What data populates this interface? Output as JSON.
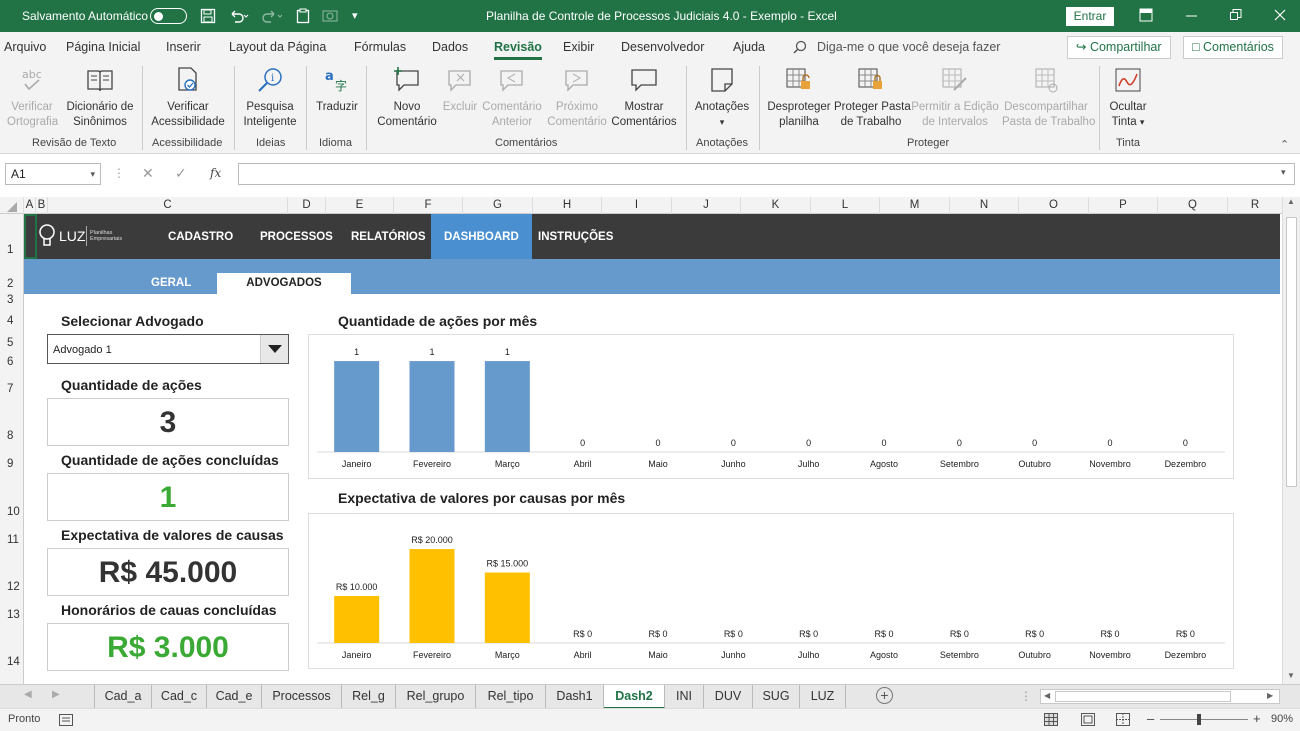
{
  "titlebar": {
    "autosave_label": "Salvamento Automático",
    "title": "Planilha de Controle de Processos Judiciais 4.0 - Exemplo  -  Excel",
    "signin_label": "Entrar"
  },
  "menu": {
    "items": [
      "Arquivo",
      "Página Inicial",
      "Inserir",
      "Layout da Página",
      "Fórmulas",
      "Dados",
      "Revisão",
      "Exibir",
      "Desenvolvedor",
      "Ajuda"
    ],
    "active": "Revisão",
    "tell_me": "Diga-me o que você deseja fazer",
    "share_label": "Compartilhar",
    "comments_label": "Comentários"
  },
  "ribbon": {
    "buttons": [
      {
        "line1": "Verificar",
        "line2": "Ortografia",
        "enabled": false
      },
      {
        "line1": "Dicionário de",
        "line2": "Sinônimos",
        "enabled": true
      },
      {
        "line1": "Verificar",
        "line2": "Acessibilidade",
        "enabled": true
      },
      {
        "line1": "Pesquisa",
        "line2": "Inteligente",
        "enabled": true
      },
      {
        "line1": "Traduzir",
        "line2": "",
        "enabled": true
      },
      {
        "line1": "Novo",
        "line2": "Comentário",
        "enabled": true
      },
      {
        "line1": "Excluir",
        "line2": "",
        "enabled": false
      },
      {
        "line1": "Comentário",
        "line2": "Anterior",
        "enabled": false
      },
      {
        "line1": "Próximo",
        "line2": "Comentário",
        "enabled": false
      },
      {
        "line1": "Mostrar",
        "line2": "Comentários",
        "enabled": true
      },
      {
        "line1": "Anotações",
        "line2": "",
        "enabled": true
      },
      {
        "line1": "Desproteger",
        "line2": "planilha",
        "enabled": true
      },
      {
        "line1": "Proteger Pasta",
        "line2": "de Trabalho",
        "enabled": true
      },
      {
        "line1": "Permitir a Edição",
        "line2": "de Intervalos",
        "enabled": false
      },
      {
        "line1": "Descompartilhar",
        "line2": "Pasta de Trabalho",
        "enabled": false
      },
      {
        "line1": "Ocultar",
        "line2": "Tinta",
        "enabled": true
      }
    ],
    "groups": [
      "Revisão de Texto",
      "Acessibilidade",
      "Ideias",
      "Idioma",
      "Comentários",
      "Anotações",
      "Proteger",
      "Tinta"
    ]
  },
  "formula_bar": {
    "name_box": "A1",
    "fx": "fx",
    "value": ""
  },
  "columns": [
    "A",
    "B",
    "C",
    "D",
    "E",
    "F",
    "G",
    "H",
    "I",
    "J",
    "K",
    "L",
    "M",
    "N",
    "O",
    "P",
    "Q",
    "R"
  ],
  "rows": [
    "1",
    "2",
    "3",
    "4",
    "5",
    "6",
    "7",
    "8",
    "9",
    "10",
    "11",
    "12",
    "13",
    "14"
  ],
  "dashboard": {
    "logo_text": "LUZ",
    "logo_sub": "Planilhas Empresariais",
    "nav": [
      "CADASTRO",
      "PROCESSOS",
      "RELATÓRIOS",
      "DASHBOARD",
      "INSTRUÇÕES"
    ],
    "nav_active": "DASHBOARD",
    "subnav": [
      "GERAL",
      "ADVOGADOS"
    ],
    "subnav_active": "ADVOGADOS",
    "select_label": "Selecionar Advogado",
    "select_value": "Advogado 1",
    "kpis": [
      {
        "label": "Quantidade de ações",
        "value": "3",
        "color": "#333333"
      },
      {
        "label": "Quantidade de ações concluídas",
        "value": "1",
        "color": "#3aaa35"
      },
      {
        "label": "Expectativa de valores de causas",
        "value": "R$ 45.000",
        "color": "#333333"
      },
      {
        "label": "Honorários de cauas concluídas",
        "value": "R$ 3.000",
        "color": "#3aaa35"
      }
    ]
  },
  "chart_data": [
    {
      "type": "bar",
      "title": "Quantidade de ações por mês",
      "categories": [
        "Janeiro",
        "Fevereiro",
        "Março",
        "Abril",
        "Maio",
        "Junho",
        "Julho",
        "Agosto",
        "Setembro",
        "Outubro",
        "Novembro",
        "Dezembro"
      ],
      "values": [
        1,
        1,
        1,
        0,
        0,
        0,
        0,
        0,
        0,
        0,
        0,
        0
      ],
      "labels": [
        "1",
        "1",
        "1",
        "0",
        "0",
        "0",
        "0",
        "0",
        "0",
        "0",
        "0",
        "0"
      ],
      "color": "#6699cc",
      "ylim": [
        0,
        1.1
      ],
      "grid": false,
      "legend": "none"
    },
    {
      "type": "bar",
      "title": "Expectativa de valores por causas por mês",
      "categories": [
        "Janeiro",
        "Fevereiro",
        "Março",
        "Abril",
        "Maio",
        "Junho",
        "Julho",
        "Agosto",
        "Setembro",
        "Outubro",
        "Novembro",
        "Dezembro"
      ],
      "values": [
        10000,
        20000,
        15000,
        0,
        0,
        0,
        0,
        0,
        0,
        0,
        0,
        0
      ],
      "labels": [
        "R$ 10.000",
        "R$ 20.000",
        "R$ 15.000",
        "R$ 0",
        "R$ 0",
        "R$ 0",
        "R$ 0",
        "R$ 0",
        "R$ 0",
        "R$ 0",
        "R$ 0",
        "R$ 0"
      ],
      "color": "#ffc000",
      "ylim": [
        0,
        21500
      ],
      "grid": false,
      "legend": "none"
    }
  ],
  "sheet_tabs": [
    "Cad_a",
    "Cad_c",
    "Cad_e",
    "Processos",
    "Rel_g",
    "Rel_grupo",
    "Rel_tipo",
    "Dash1",
    "Dash2",
    "INI",
    "DUV",
    "SUG",
    "LUZ"
  ],
  "active_tab": "Dash2",
  "status": {
    "ready": "Pronto",
    "zoom": "90%"
  }
}
